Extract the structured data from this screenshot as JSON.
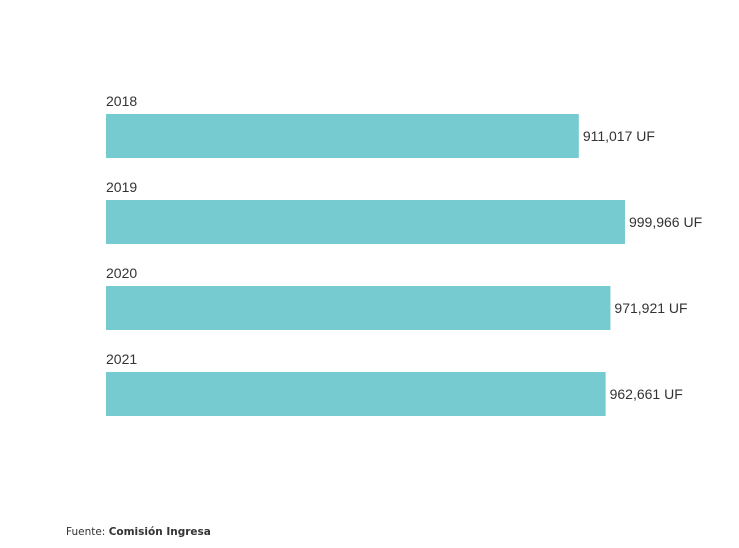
{
  "chart_data": {
    "type": "bar",
    "orientation": "horizontal",
    "categories": [
      "2018",
      "2019",
      "2020",
      "2021"
    ],
    "values": [
      911017,
      999966,
      971921,
      962661
    ],
    "data_labels": [
      "911,017 UF",
      "999,966 UF",
      "971,921 UF",
      "962,661 UF"
    ],
    "title": "",
    "xlabel": "",
    "ylabel": "",
    "xlim": [
      0,
      1000000
    ],
    "grid": false,
    "legend": "none",
    "bar_color": "#76CBD0"
  },
  "source": {
    "prefix": "Fuente: ",
    "name": "Comisión Ingresa"
  }
}
